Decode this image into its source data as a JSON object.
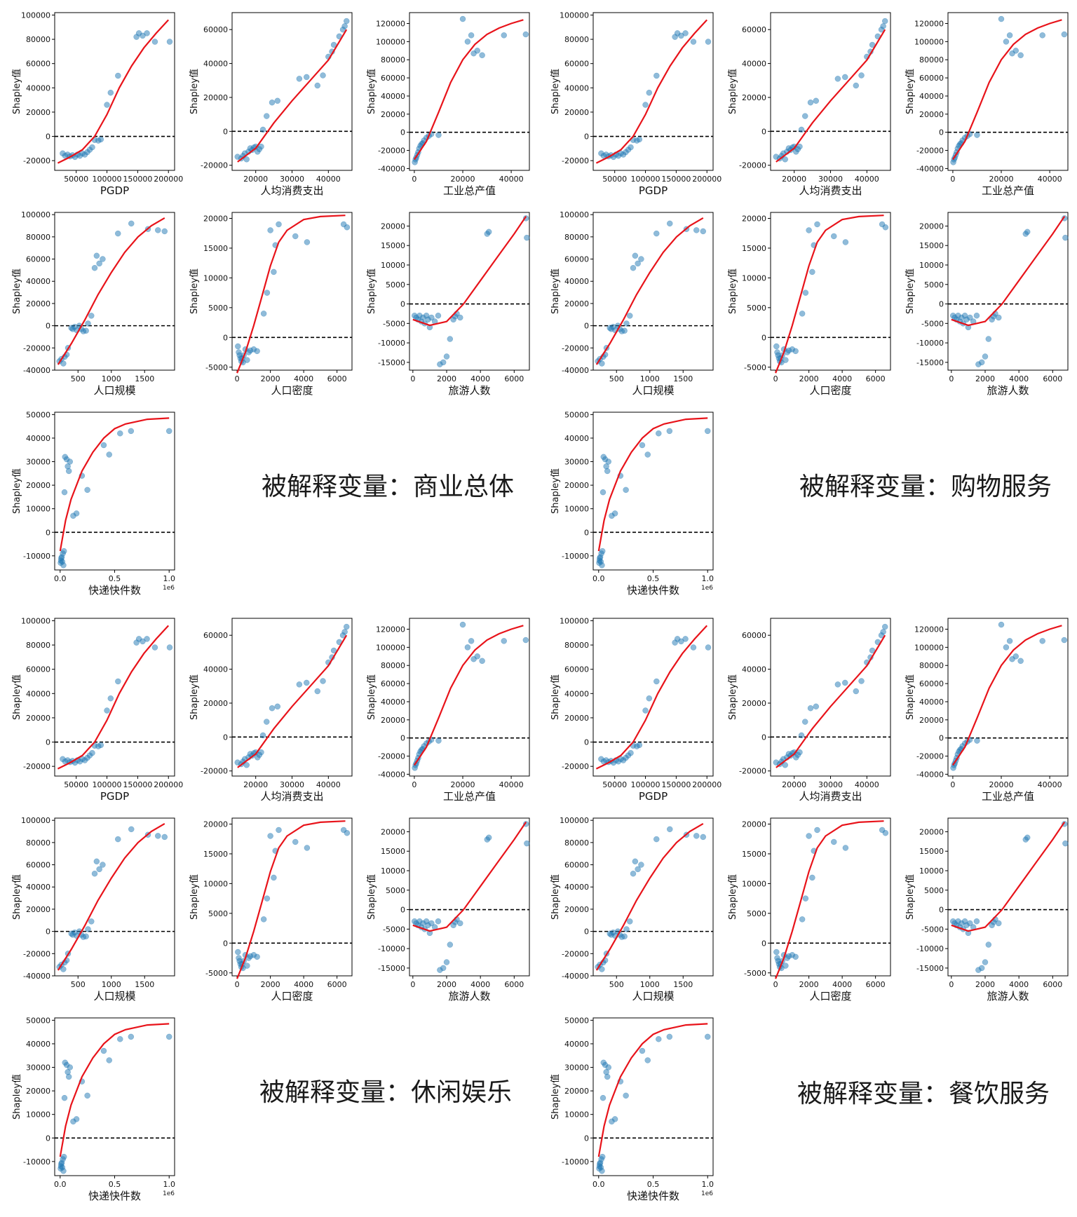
{
  "ylabel": "Shapley值",
  "zero_line": 0,
  "groups": [
    {
      "caption": "被解释变量：商业总体"
    },
    {
      "caption": "被解释变量：购物服务"
    },
    {
      "caption": "被解释变量：休闲娱乐"
    },
    {
      "caption": "被解释变量：餐饮服务"
    }
  ],
  "chart_data": [
    {
      "type": "scatter",
      "xlabel": "PGDP",
      "xlim": [
        15000,
        210000
      ],
      "ylim": [
        -28000,
        102000
      ],
      "xticks": [
        50000,
        100000,
        150000,
        200000
      ],
      "xtick_labels": [
        "50000",
        "100000",
        "150000",
        "200000"
      ],
      "yticks": [
        -20000,
        0,
        20000,
        40000,
        60000,
        80000,
        100000
      ],
      "points": [
        [
          28000,
          -14000
        ],
        [
          32000,
          -16000
        ],
        [
          36000,
          -15000
        ],
        [
          40000,
          -16500
        ],
        [
          44000,
          -15500
        ],
        [
          48000,
          -17000
        ],
        [
          52000,
          -15000
        ],
        [
          56000,
          -16000
        ],
        [
          60000,
          -14000
        ],
        [
          64000,
          -15000
        ],
        [
          68000,
          -13000
        ],
        [
          72000,
          -11000
        ],
        [
          76000,
          -9000
        ],
        [
          80000,
          -3000
        ],
        [
          86000,
          -3500
        ],
        [
          90000,
          -2500
        ],
        [
          100000,
          26000
        ],
        [
          106000,
          36000
        ],
        [
          118000,
          50000
        ],
        [
          148000,
          82000
        ],
        [
          152000,
          85000
        ],
        [
          158000,
          83000
        ],
        [
          165000,
          85000
        ],
        [
          178000,
          78000
        ],
        [
          202000,
          78000
        ]
      ],
      "fit": [
        [
          20000,
          -22000
        ],
        [
          40000,
          -17000
        ],
        [
          60000,
          -11000
        ],
        [
          80000,
          0
        ],
        [
          100000,
          18000
        ],
        [
          120000,
          40000
        ],
        [
          140000,
          58000
        ],
        [
          160000,
          73000
        ],
        [
          180000,
          85000
        ],
        [
          200000,
          96000
        ]
      ]
    },
    {
      "type": "scatter",
      "xlabel": "人均消费支出",
      "xlim": [
        13500,
        46500
      ],
      "ylim": [
        -23000,
        70000
      ],
      "xticks": [
        20000,
        30000,
        40000
      ],
      "xtick_labels": [
        "20000",
        "30000",
        "40000"
      ],
      "yticks": [
        -20000,
        0,
        20000,
        40000,
        60000
      ],
      "points": [
        [
          15000,
          -15000
        ],
        [
          16000,
          -16000
        ],
        [
          16500,
          -14500
        ],
        [
          17000,
          -13000
        ],
        [
          17500,
          -16500
        ],
        [
          18000,
          -12000
        ],
        [
          18500,
          -10000
        ],
        [
          19000,
          -11000
        ],
        [
          19500,
          -9500
        ],
        [
          20000,
          -9000
        ],
        [
          20500,
          -12000
        ],
        [
          21000,
          -10500
        ],
        [
          21500,
          -9000
        ],
        [
          22000,
          1000
        ],
        [
          23000,
          9000
        ],
        [
          24500,
          17000
        ],
        [
          26000,
          18000
        ],
        [
          32000,
          31000
        ],
        [
          34000,
          32000
        ],
        [
          37000,
          27000
        ],
        [
          38500,
          33000
        ],
        [
          40000,
          44000
        ],
        [
          41000,
          47000
        ],
        [
          41500,
          51000
        ],
        [
          43000,
          56000
        ],
        [
          44000,
          60000
        ],
        [
          44500,
          62000
        ],
        [
          45000,
          65000
        ]
      ],
      "fit": [
        [
          15000,
          -18000
        ],
        [
          20000,
          -10000
        ],
        [
          25000,
          5000
        ],
        [
          30000,
          18000
        ],
        [
          35000,
          30000
        ],
        [
          40000,
          42000
        ],
        [
          45000,
          60000
        ]
      ]
    },
    {
      "type": "scatter",
      "xlabel": "工业总产值",
      "xlim": [
        -2000,
        47500
      ],
      "ylim": [
        -42000,
        132000
      ],
      "xticks": [
        0,
        20000,
        40000
      ],
      "xtick_labels": [
        "0",
        "20000",
        "40000"
      ],
      "yticks": [
        -40000,
        -20000,
        0,
        20000,
        40000,
        60000,
        80000,
        100000,
        120000
      ],
      "points": [
        [
          200,
          -33000
        ],
        [
          500,
          -30000
        ],
        [
          800,
          -28000
        ],
        [
          1200,
          -25000
        ],
        [
          1600,
          -22000
        ],
        [
          2000,
          -18000
        ],
        [
          2500,
          -15000
        ],
        [
          3000,
          -13000
        ],
        [
          3500,
          -12000
        ],
        [
          4000,
          -9000
        ],
        [
          5000,
          -6000
        ],
        [
          6000,
          -4000
        ],
        [
          7000,
          -2000
        ],
        [
          10000,
          -3000
        ],
        [
          20000,
          125000
        ],
        [
          22000,
          100000
        ],
        [
          23500,
          107000
        ],
        [
          24500,
          87000
        ],
        [
          26000,
          90000
        ],
        [
          28000,
          85000
        ],
        [
          37000,
          107000
        ],
        [
          46000,
          108000
        ]
      ],
      "fit": [
        [
          0,
          -30000
        ],
        [
          5000,
          -10000
        ],
        [
          10000,
          22000
        ],
        [
          15000,
          55000
        ],
        [
          20000,
          80000
        ],
        [
          25000,
          97000
        ],
        [
          30000,
          108000
        ],
        [
          35000,
          115000
        ],
        [
          40000,
          120000
        ],
        [
          45000,
          124000
        ]
      ]
    },
    {
      "type": "scatter",
      "xlabel": "人口规模",
      "xlim": [
        150,
        1950
      ],
      "ylim": [
        -40000,
        102000
      ],
      "xticks": [
        500,
        1000,
        1500
      ],
      "xtick_labels": [
        "500",
        "1000",
        "1500"
      ],
      "yticks": [
        -40000,
        -20000,
        0,
        20000,
        40000,
        60000,
        80000,
        100000
      ],
      "points": [
        [
          220,
          -32000
        ],
        [
          250,
          -30000
        ],
        [
          280,
          -34000
        ],
        [
          300,
          -28000
        ],
        [
          330,
          -26000
        ],
        [
          350,
          -20000
        ],
        [
          400,
          -2000
        ],
        [
          420,
          -3000
        ],
        [
          450,
          -1000
        ],
        [
          480,
          -4000
        ],
        [
          520,
          0
        ],
        [
          550,
          -3000
        ],
        [
          580,
          -5000
        ],
        [
          620,
          -4500
        ],
        [
          650,
          2000
        ],
        [
          700,
          9000
        ],
        [
          750,
          52000
        ],
        [
          780,
          63000
        ],
        [
          820,
          56000
        ],
        [
          870,
          60000
        ],
        [
          1100,
          83000
        ],
        [
          1300,
          92000
        ],
        [
          1550,
          87000
        ],
        [
          1700,
          86000
        ],
        [
          1800,
          85000
        ]
      ],
      "fit": [
        [
          200,
          -35000
        ],
        [
          400,
          -16000
        ],
        [
          600,
          5000
        ],
        [
          800,
          28000
        ],
        [
          1000,
          48000
        ],
        [
          1200,
          66000
        ],
        [
          1400,
          80000
        ],
        [
          1600,
          90000
        ],
        [
          1800,
          97000
        ]
      ]
    },
    {
      "type": "scatter",
      "xlabel": "人口密度",
      "xlim": [
        -300,
        6900
      ],
      "ylim": [
        -5500,
        21000
      ],
      "xticks": [
        0,
        2000,
        4000,
        6000
      ],
      "xtick_labels": [
        "0",
        "2000",
        "4000",
        "6000"
      ],
      "yticks": [
        -5000,
        0,
        5000,
        10000,
        15000,
        20000
      ],
      "points": [
        [
          50,
          -1500
        ],
        [
          100,
          -2500
        ],
        [
          150,
          -3000
        ],
        [
          200,
          -3500
        ],
        [
          250,
          -4000
        ],
        [
          300,
          -3500
        ],
        [
          350,
          -4200
        ],
        [
          400,
          -3000
        ],
        [
          500,
          -2000
        ],
        [
          600,
          -3800
        ],
        [
          700,
          -2500
        ],
        [
          800,
          -2200
        ],
        [
          1000,
          -2000
        ],
        [
          1200,
          -2300
        ],
        [
          1600,
          4000
        ],
        [
          1800,
          7500
        ],
        [
          2000,
          18000
        ],
        [
          2200,
          11000
        ],
        [
          2300,
          15500
        ],
        [
          2500,
          19000
        ],
        [
          3500,
          17000
        ],
        [
          4200,
          16000
        ],
        [
          6400,
          19000
        ],
        [
          6600,
          18500
        ]
      ],
      "fit": [
        [
          0,
          -6000
        ],
        [
          500,
          -2500
        ],
        [
          1000,
          2000
        ],
        [
          1500,
          7000
        ],
        [
          2000,
          12000
        ],
        [
          2500,
          16000
        ],
        [
          3000,
          18000
        ],
        [
          4000,
          19800
        ],
        [
          5000,
          20300
        ],
        [
          6500,
          20500
        ]
      ]
    },
    {
      "type": "scatter",
      "xlabel": "旅游人数",
      "xlim": [
        -200,
        6900
      ],
      "ylim": [
        -17000,
        23500
      ],
      "xticks": [
        0,
        2000,
        4000,
        6000
      ],
      "xtick_labels": [
        "0",
        "2000",
        "4000",
        "6000"
      ],
      "yticks": [
        -15000,
        -10000,
        -5000,
        0,
        5000,
        10000,
        15000,
        20000
      ],
      "points": [
        [
          100,
          -3000
        ],
        [
          200,
          -3500
        ],
        [
          300,
          -4000
        ],
        [
          400,
          -3000
        ],
        [
          500,
          -4500
        ],
        [
          600,
          -3500
        ],
        [
          700,
          -5000
        ],
        [
          800,
          -3000
        ],
        [
          900,
          -4000
        ],
        [
          1000,
          -6000
        ],
        [
          1100,
          -3500
        ],
        [
          1300,
          -4500
        ],
        [
          1500,
          -3000
        ],
        [
          1600,
          -15500
        ],
        [
          1800,
          -15000
        ],
        [
          2000,
          -13500
        ],
        [
          2200,
          -9000
        ],
        [
          2400,
          -4000
        ],
        [
          2500,
          -3200
        ],
        [
          2600,
          -2500
        ],
        [
          2800,
          -3500
        ],
        [
          4400,
          18000
        ],
        [
          4500,
          18500
        ],
        [
          6700,
          22000
        ],
        [
          6750,
          17000
        ]
      ],
      "fit": [
        [
          0,
          -4000
        ],
        [
          1000,
          -5500
        ],
        [
          2000,
          -4500
        ],
        [
          3000,
          0
        ],
        [
          4000,
          6000
        ],
        [
          5000,
          12000
        ],
        [
          6000,
          18000
        ],
        [
          6700,
          22500
        ]
      ]
    },
    {
      "type": "scatter",
      "xlabel": "快递快件数",
      "x_multiplier": "1e6",
      "xlim": [
        -50000,
        1050000
      ],
      "ylim": [
        -16000,
        51000
      ],
      "xticks": [
        0,
        500000,
        1000000
      ],
      "xtick_labels": [
        "0.0",
        "0.5",
        "1.0"
      ],
      "yticks": [
        -10000,
        0,
        10000,
        20000,
        30000,
        40000,
        50000
      ],
      "points": [
        [
          5000,
          -13000
        ],
        [
          8000,
          -12000
        ],
        [
          10000,
          -11000
        ],
        [
          15000,
          -10500
        ],
        [
          20000,
          -12500
        ],
        [
          25000,
          -9000
        ],
        [
          30000,
          -14000
        ],
        [
          35000,
          -8000
        ],
        [
          40000,
          17000
        ],
        [
          45000,
          32000
        ],
        [
          60000,
          31000
        ],
        [
          70000,
          28000
        ],
        [
          80000,
          26000
        ],
        [
          90000,
          30000
        ],
        [
          150000,
          8000
        ],
        [
          120000,
          7000
        ],
        [
          200000,
          24000
        ],
        [
          250000,
          18000
        ],
        [
          400000,
          37000
        ],
        [
          450000,
          33000
        ],
        [
          550000,
          42000
        ],
        [
          650000,
          43000
        ],
        [
          1000000,
          43000
        ]
      ],
      "fit": [
        [
          0,
          -8000
        ],
        [
          50000,
          5000
        ],
        [
          100000,
          14000
        ],
        [
          200000,
          26000
        ],
        [
          300000,
          34000
        ],
        [
          400000,
          40000
        ],
        [
          500000,
          44000
        ],
        [
          600000,
          46000
        ],
        [
          800000,
          48000
        ],
        [
          1000000,
          48500
        ]
      ]
    }
  ]
}
